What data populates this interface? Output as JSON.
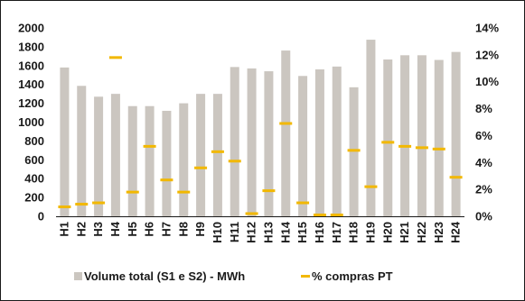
{
  "chart_data": {
    "type": "bar",
    "categories": [
      "H1",
      "H2",
      "H3",
      "H4",
      "H5",
      "H6",
      "H7",
      "H8",
      "H9",
      "H10",
      "H11",
      "H12",
      "H13",
      "H14",
      "H15",
      "H16",
      "H17",
      "H18",
      "H19",
      "H20",
      "H21",
      "H22",
      "H23",
      "H24"
    ],
    "series": [
      {
        "name": "Volume total (S1 e S2) - MWh",
        "type": "bar",
        "axis": "left",
        "color": "#cbc6c0",
        "values": [
          1580,
          1385,
          1270,
          1300,
          1170,
          1170,
          1120,
          1200,
          1300,
          1300,
          1585,
          1570,
          1540,
          1760,
          1490,
          1560,
          1590,
          1370,
          1875,
          1665,
          1710,
          1710,
          1660,
          1745
        ]
      },
      {
        "name": "% compras PT",
        "type": "marker",
        "axis": "right",
        "color": "#f2b800",
        "values": [
          0.7,
          0.9,
          1.0,
          11.8,
          1.8,
          5.2,
          2.7,
          1.8,
          3.6,
          4.8,
          4.1,
          0.2,
          1.9,
          6.9,
          1.0,
          0.1,
          0.1,
          4.9,
          2.2,
          5.5,
          5.2,
          5.1,
          5.0,
          2.9
        ]
      }
    ],
    "y_left": {
      "ylim": [
        0,
        2000
      ],
      "ticks": [
        0,
        200,
        400,
        600,
        800,
        1000,
        1200,
        1400,
        1600,
        1800,
        2000
      ],
      "tick_labels": [
        "0",
        "200",
        "400",
        "600",
        "800",
        "1000",
        "1200",
        "1400",
        "1600",
        "1800",
        "2000"
      ]
    },
    "y_right": {
      "ylim": [
        0,
        14
      ],
      "ticks": [
        0,
        2,
        4,
        6,
        8,
        10,
        12,
        14
      ],
      "tick_labels": [
        "0%",
        "2%",
        "4%",
        "6%",
        "8%",
        "10%",
        "12%",
        "14%"
      ]
    },
    "grid": false,
    "legend_position": "bottom"
  }
}
